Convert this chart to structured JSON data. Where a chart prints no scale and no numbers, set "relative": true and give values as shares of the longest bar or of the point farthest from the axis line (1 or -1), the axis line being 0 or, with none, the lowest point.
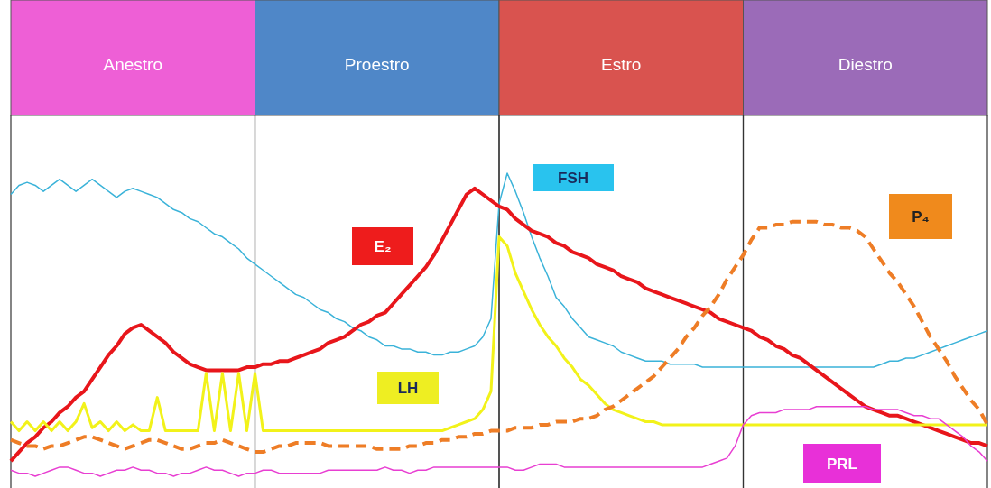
{
  "chart_data": {
    "type": "line",
    "relative": true,
    "grid": "x",
    "annotations": [
      "Anestro",
      "Proestro",
      "Estro",
      "Diestro"
    ],
    "categories": [
      null,
      null,
      null,
      null,
      null,
      null,
      null,
      null,
      null,
      null,
      null,
      null,
      null,
      null,
      null,
      null,
      null,
      null,
      null,
      null,
      null,
      null,
      null,
      null,
      null,
      null,
      null,
      null,
      null,
      null,
      null,
      null,
      null,
      null,
      null,
      null,
      null,
      null,
      null,
      null,
      null,
      null,
      null,
      null,
      null,
      null,
      null,
      null,
      null,
      null,
      null,
      null,
      null,
      null,
      null,
      null,
      null,
      null,
      null,
      null,
      null,
      null,
      null,
      null,
      null,
      null,
      null,
      null,
      null,
      null,
      null,
      null,
      null,
      null,
      null,
      null,
      null,
      null,
      null,
      null,
      null,
      null,
      null,
      null,
      null,
      null,
      null,
      null,
      null,
      null,
      null,
      null,
      null,
      null,
      null,
      null,
      null,
      null,
      null,
      null,
      null,
      null,
      null,
      null,
      null,
      null,
      null,
      null,
      null,
      null,
      null,
      null,
      null,
      null,
      null,
      null,
      null,
      null,
      null,
      null,
      null
    ],
    "series": [
      {
        "name": "FSH",
        "color": "#3bb3d9",
        "values": [
          0.93,
          0.96,
          0.97,
          0.96,
          0.94,
          0.96,
          0.98,
          0.96,
          0.94,
          0.96,
          0.98,
          0.96,
          0.94,
          0.92,
          0.94,
          0.95,
          0.94,
          0.93,
          0.92,
          0.9,
          0.88,
          0.87,
          0.85,
          0.84,
          0.82,
          0.8,
          0.79,
          0.77,
          0.75,
          0.72,
          0.7,
          0.68,
          0.66,
          0.64,
          0.62,
          0.6,
          0.59,
          0.57,
          0.55,
          0.54,
          0.52,
          0.51,
          0.49,
          0.48,
          0.46,
          0.45,
          0.43,
          0.43,
          0.42,
          0.42,
          0.41,
          0.41,
          0.4,
          0.4,
          0.41,
          0.41,
          0.42,
          0.43,
          0.46,
          0.52,
          0.9,
          1,
          0.94,
          0.87,
          0.79,
          0.72,
          0.66,
          0.59,
          0.56,
          0.52,
          0.49,
          0.46,
          0.45,
          0.44,
          0.43,
          0.41,
          0.4,
          0.39,
          0.38,
          0.38,
          0.38,
          0.37,
          0.37,
          0.37,
          0.37,
          0.36,
          0.36,
          0.36,
          0.36,
          0.36,
          0.36,
          0.36,
          0.36,
          0.36,
          0.36,
          0.36,
          0.36,
          0.36,
          0.36,
          0.36,
          0.36,
          0.36,
          0.36,
          0.36,
          0.36,
          0.36,
          0.36,
          0.37,
          0.38,
          0.38,
          0.39,
          0.39,
          0.4,
          0.41,
          0.42,
          0.43,
          0.44,
          0.45,
          0.46,
          0.47,
          0.48
        ]
      },
      {
        "name": "E₂",
        "color": "#e8161b",
        "values": [
          0.05,
          0.08,
          0.11,
          0.13,
          0.16,
          0.18,
          0.21,
          0.23,
          0.26,
          0.28,
          0.32,
          0.36,
          0.4,
          0.43,
          0.47,
          0.49,
          0.5,
          0.48,
          0.46,
          0.44,
          0.41,
          0.39,
          0.37,
          0.36,
          0.35,
          0.35,
          0.35,
          0.35,
          0.35,
          0.36,
          0.36,
          0.37,
          0.37,
          0.38,
          0.38,
          0.39,
          0.4,
          0.41,
          0.42,
          0.44,
          0.45,
          0.46,
          0.48,
          0.5,
          0.51,
          0.53,
          0.54,
          0.57,
          0.6,
          0.63,
          0.66,
          0.69,
          0.73,
          0.78,
          0.83,
          0.88,
          0.93,
          0.95,
          0.93,
          0.91,
          0.89,
          0.88,
          0.85,
          0.83,
          0.81,
          0.8,
          0.79,
          0.77,
          0.76,
          0.74,
          0.73,
          0.72,
          0.7,
          0.69,
          0.68,
          0.66,
          0.65,
          0.64,
          0.62,
          0.61,
          0.6,
          0.59,
          0.58,
          0.57,
          0.56,
          0.55,
          0.54,
          0.52,
          0.51,
          0.5,
          0.49,
          0.48,
          0.46,
          0.45,
          0.43,
          0.42,
          0.4,
          0.39,
          0.37,
          0.35,
          0.33,
          0.31,
          0.29,
          0.27,
          0.25,
          0.23,
          0.22,
          0.21,
          0.2,
          0.2,
          0.19,
          0.18,
          0.17,
          0.16,
          0.15,
          0.14,
          0.13,
          0.12,
          0.11,
          0.11,
          0.1
        ]
      },
      {
        "name": "LH",
        "color": "#f2f21a",
        "values": [
          0.18,
          0.15,
          0.18,
          0.15,
          0.18,
          0.15,
          0.18,
          0.15,
          0.18,
          0.24,
          0.16,
          0.18,
          0.15,
          0.18,
          0.15,
          0.17,
          0.15,
          0.15,
          0.26,
          0.15,
          0.15,
          0.15,
          0.15,
          0.15,
          0.34,
          0.15,
          0.34,
          0.15,
          0.34,
          0.15,
          0.34,
          0.15,
          0.15,
          0.15,
          0.15,
          0.15,
          0.15,
          0.15,
          0.15,
          0.15,
          0.15,
          0.15,
          0.15,
          0.15,
          0.15,
          0.15,
          0.15,
          0.15,
          0.15,
          0.15,
          0.15,
          0.15,
          0.15,
          0.15,
          0.16,
          0.17,
          0.18,
          0.19,
          0.22,
          0.28,
          0.79,
          0.76,
          0.67,
          0.61,
          0.55,
          0.5,
          0.46,
          0.43,
          0.39,
          0.36,
          0.32,
          0.3,
          0.27,
          0.24,
          0.22,
          0.21,
          0.2,
          0.19,
          0.18,
          0.18,
          0.17,
          0.17,
          0.17,
          0.17,
          0.17,
          0.17,
          0.17,
          0.17,
          0.17,
          0.17,
          0.17,
          0.17,
          0.17,
          0.17,
          0.17,
          0.17,
          0.17,
          0.17,
          0.17,
          0.17,
          0.17,
          0.17,
          0.17,
          0.17,
          0.17,
          0.17,
          0.17,
          0.17,
          0.17,
          0.17,
          0.17,
          0.17,
          0.17,
          0.17,
          0.17,
          0.17,
          0.17,
          0.17,
          0.17,
          0.17,
          0.17
        ]
      },
      {
        "name": "P₄",
        "color": "#ee7d26",
        "line_style": "dashed",
        "values": [
          0.12,
          0.11,
          0.1,
          0.1,
          0.09,
          0.1,
          0.1,
          0.11,
          0.12,
          0.13,
          0.13,
          0.12,
          0.11,
          0.1,
          0.09,
          0.1,
          0.11,
          0.12,
          0.12,
          0.11,
          0.1,
          0.09,
          0.09,
          0.1,
          0.11,
          0.11,
          0.12,
          0.11,
          0.1,
          0.09,
          0.08,
          0.08,
          0.09,
          0.1,
          0.1,
          0.11,
          0.11,
          0.11,
          0.11,
          0.1,
          0.1,
          0.1,
          0.1,
          0.1,
          0.1,
          0.09,
          0.09,
          0.09,
          0.09,
          0.1,
          0.1,
          0.11,
          0.11,
          0.12,
          0.12,
          0.13,
          0.13,
          0.14,
          0.14,
          0.15,
          0.15,
          0.15,
          0.16,
          0.16,
          0.16,
          0.17,
          0.17,
          0.18,
          0.18,
          0.18,
          0.19,
          0.19,
          0.2,
          0.22,
          0.23,
          0.25,
          0.27,
          0.29,
          0.31,
          0.33,
          0.36,
          0.39,
          0.42,
          0.46,
          0.49,
          0.53,
          0.56,
          0.6,
          0.65,
          0.69,
          0.73,
          0.78,
          0.82,
          0.82,
          0.83,
          0.83,
          0.84,
          0.84,
          0.84,
          0.84,
          0.83,
          0.83,
          0.82,
          0.82,
          0.81,
          0.79,
          0.75,
          0.71,
          0.67,
          0.64,
          0.6,
          0.56,
          0.51,
          0.46,
          0.42,
          0.38,
          0.33,
          0.29,
          0.25,
          0.22,
          0.17
        ]
      },
      {
        "name": "PRL",
        "color": "#e83fd2",
        "values": [
          0.02,
          0.01,
          0.01,
          0,
          0.01,
          0.02,
          0.03,
          0.03,
          0.02,
          0.01,
          0.01,
          0,
          0.01,
          0.02,
          0.02,
          0.03,
          0.02,
          0.02,
          0.01,
          0.01,
          0,
          0.01,
          0.01,
          0.02,
          0.03,
          0.02,
          0.02,
          0.01,
          0,
          0.01,
          0.01,
          0.02,
          0.02,
          0.01,
          0.01,
          0.01,
          0.01,
          0.01,
          0.01,
          0.02,
          0.02,
          0.02,
          0.02,
          0.02,
          0.02,
          0.02,
          0.03,
          0.02,
          0.02,
          0.01,
          0.02,
          0.02,
          0.03,
          0.03,
          0.03,
          0.03,
          0.03,
          0.03,
          0.03,
          0.03,
          0.03,
          0.03,
          0.02,
          0.02,
          0.03,
          0.04,
          0.04,
          0.04,
          0.03,
          0.03,
          0.03,
          0.03,
          0.03,
          0.03,
          0.03,
          0.03,
          0.03,
          0.03,
          0.03,
          0.03,
          0.03,
          0.03,
          0.03,
          0.03,
          0.03,
          0.03,
          0.04,
          0.05,
          0.06,
          0.1,
          0.17,
          0.2,
          0.21,
          0.21,
          0.21,
          0.22,
          0.22,
          0.22,
          0.22,
          0.23,
          0.23,
          0.23,
          0.23,
          0.23,
          0.23,
          0.23,
          0.22,
          0.22,
          0.22,
          0.22,
          0.21,
          0.2,
          0.2,
          0.19,
          0.19,
          0.17,
          0.15,
          0.13,
          0.1,
          0.08,
          0.05
        ]
      }
    ]
  }
}
